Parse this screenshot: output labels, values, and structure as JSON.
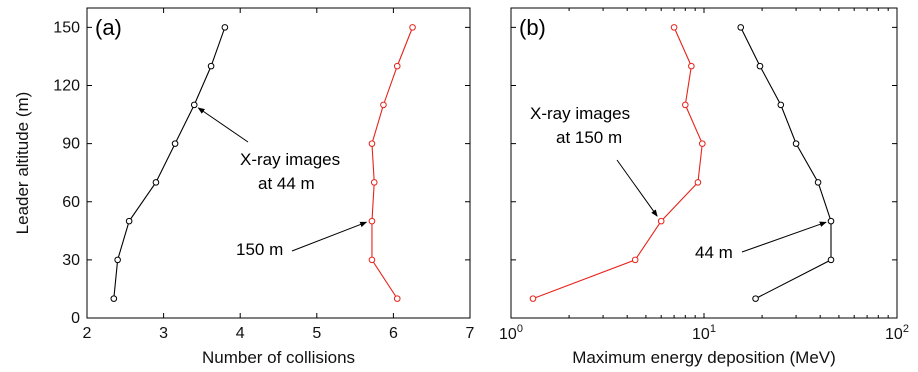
{
  "chart_data": [
    {
      "type": "line",
      "panel_label": "(a)",
      "xlabel": "Number of collisions",
      "ylabel": "Leader altitude (m)",
      "xlim": [
        2,
        7
      ],
      "ylim": [
        0,
        160
      ],
      "xticks": [
        2,
        3,
        4,
        5,
        6,
        7
      ],
      "yticks": [
        0,
        30,
        60,
        90,
        120,
        150
      ],
      "xscale": "linear",
      "grid": false,
      "series": [
        {
          "color": "#000000",
          "points": [
            [
              2.35,
              10
            ],
            [
              2.4,
              30
            ],
            [
              2.55,
              50
            ],
            [
              2.9,
              70
            ],
            [
              3.15,
              90
            ],
            [
              3.4,
              110
            ],
            [
              3.62,
              130
            ],
            [
              3.8,
              150
            ]
          ]
        },
        {
          "color": "#e8231a",
          "points": [
            [
              6.05,
              10
            ],
            [
              5.72,
              30
            ],
            [
              5.72,
              50
            ],
            [
              5.75,
              70
            ],
            [
              5.72,
              90
            ],
            [
              5.87,
              110
            ],
            [
              6.05,
              130
            ],
            [
              6.25,
              150
            ]
          ]
        }
      ],
      "annotations": [
        {
          "lines": [
            "X-ray images",
            "at 44 m"
          ],
          "arrow_to": [
            3.4,
            110
          ]
        },
        {
          "lines": [
            "150 m"
          ],
          "arrow_to": [
            5.7,
            51
          ]
        }
      ]
    },
    {
      "type": "line",
      "panel_label": "(b)",
      "xlabel": "Maximum energy deposition (MeV)",
      "ylabel": "",
      "xlim": [
        1,
        100
      ],
      "ylim": [
        0,
        160
      ],
      "xscale": "log",
      "xtick_labels": [
        {
          "base": "10",
          "exp": "0"
        },
        {
          "base": "10",
          "exp": "1"
        },
        {
          "base": "10",
          "exp": "2"
        }
      ],
      "yticks": [
        0,
        30,
        60,
        90,
        120,
        150
      ],
      "grid": false,
      "series": [
        {
          "color": "#e8231a",
          "points": [
            [
              1.3,
              10
            ],
            [
              4.4,
              30
            ],
            [
              6.0,
              50
            ],
            [
              9.3,
              70
            ],
            [
              9.8,
              90
            ],
            [
              8.0,
              110
            ],
            [
              8.6,
              130
            ],
            [
              7.0,
              150
            ]
          ]
        },
        {
          "color": "#000000",
          "points": [
            [
              18.5,
              10
            ],
            [
              45.5,
              30
            ],
            [
              45.5,
              50
            ],
            [
              39,
              70
            ],
            [
              30,
              90
            ],
            [
              25,
              110
            ],
            [
              19.5,
              130
            ],
            [
              15.5,
              150
            ]
          ]
        }
      ],
      "annotations": [
        {
          "lines": [
            "X-ray images",
            "at 150 m"
          ],
          "arrow_to": [
            6.0,
            51
          ]
        },
        {
          "lines": [
            "44 m"
          ],
          "arrow_to": [
            45,
            51
          ]
        }
      ]
    }
  ]
}
